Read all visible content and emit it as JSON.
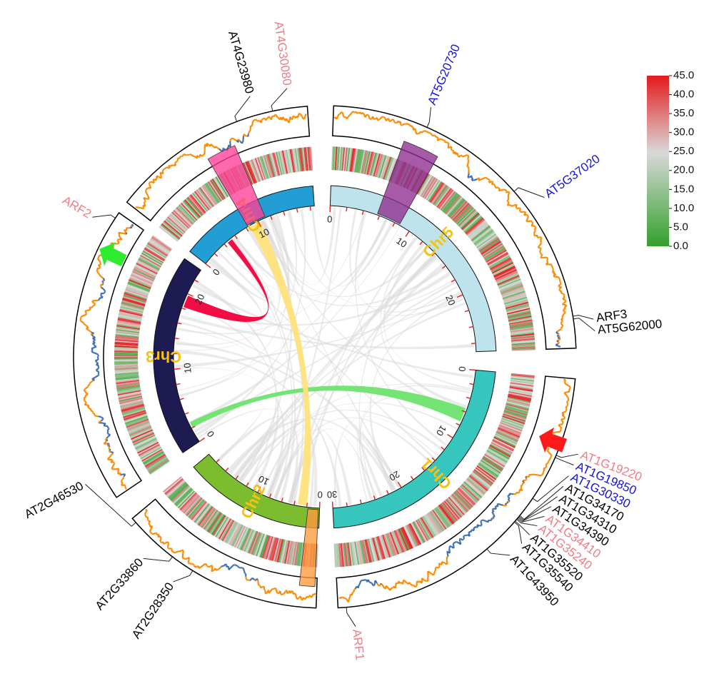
{
  "colors": {
    "chr1": "#36C6BE",
    "chr2": "#7CBD2F",
    "chr3": "#1E1B52",
    "chr4": "#239ED5",
    "chr5": "#BFE3EC",
    "chr_label": "#F5C211",
    "tick": "#e02020",
    "link_bg": "#d9d9d9",
    "link_red": "#F2003A",
    "link_green": "#6DE36D",
    "link_yellow": "#FFE27A",
    "hl_pink": "#FF3D95",
    "hl_purple": "#8E2B8E",
    "hl_orange": "#FF9A3C",
    "line_orange": "#FF8A00",
    "line_blue": "#3F6FB5",
    "text_black": "#000000",
    "text_pink": "#F07C86",
    "text_blue": "#1515D9"
  },
  "chromosomes": [
    {
      "name": "Chr1",
      "length": 30,
      "major_ticks": [
        0,
        10,
        20,
        30
      ]
    },
    {
      "name": "Chr2",
      "length": 19.7,
      "major_ticks": [
        0,
        10
      ]
    },
    {
      "name": "Chr3",
      "length": 23.5,
      "major_ticks": [
        0,
        10,
        20
      ]
    },
    {
      "name": "Chr4",
      "length": 18.6,
      "major_ticks": [
        0,
        10
      ]
    },
    {
      "name": "Chr5",
      "length": 27,
      "major_ticks": [
        0,
        10,
        20
      ]
    }
  ],
  "gene_labels": [
    {
      "text": "AT4G23980",
      "chr": "Chr4",
      "pos": 12.2,
      "color": "black"
    },
    {
      "text": "AT4G30080",
      "chr": "Chr4",
      "pos": 15.5,
      "color": "pink"
    },
    {
      "text": "AT5G20730",
      "chr": "Chr5",
      "pos": 6.9,
      "color": "blue"
    },
    {
      "text": "AT5G37020",
      "chr": "Chr5",
      "pos": 14.7,
      "color": "blue"
    },
    {
      "text": "ARF3",
      "chr": "Chr5",
      "pos": 24.7,
      "color": "black"
    },
    {
      "text": "AT5G62000",
      "chr": "Chr5",
      "pos": 24.9,
      "color": "black"
    },
    {
      "text": "ARF2",
      "chr": "Chr3",
      "pos": 23.0,
      "color": "pink"
    },
    {
      "text": "AT1G19220",
      "chr": "Chr1",
      "pos": 6.6,
      "color": "pink"
    },
    {
      "text": "AT1G19850",
      "chr": "Chr1",
      "pos": 6.8,
      "color": "blue"
    },
    {
      "text": "AT1G30330",
      "chr": "Chr1",
      "pos": 10.7,
      "color": "blue"
    },
    {
      "text": "AT1G34170",
      "chr": "Chr1",
      "pos": 12.5,
      "color": "black"
    },
    {
      "text": "AT1G34310",
      "chr": "Chr1",
      "pos": 12.6,
      "color": "black"
    },
    {
      "text": "AT1G34390",
      "chr": "Chr1",
      "pos": 12.7,
      "color": "black"
    },
    {
      "text": "AT1G34410",
      "chr": "Chr1",
      "pos": 12.8,
      "color": "pink"
    },
    {
      "text": "AT1G35240",
      "chr": "Chr1",
      "pos": 12.9,
      "color": "pink"
    },
    {
      "text": "AT1G35520",
      "chr": "Chr1",
      "pos": 13.1,
      "color": "black"
    },
    {
      "text": "AT1G35540",
      "chr": "Chr1",
      "pos": 13.2,
      "color": "black"
    },
    {
      "text": "AT1G43950",
      "chr": "Chr1",
      "pos": 16.4,
      "color": "black"
    },
    {
      "text": "ARF1",
      "chr": "Chr1",
      "pos": 29.3,
      "color": "pink"
    },
    {
      "text": "AT2G46530",
      "chr": "Chr2",
      "pos": 19.2,
      "color": "black"
    },
    {
      "text": "AT2G33860",
      "chr": "Chr2",
      "pos": 14.5,
      "color": "black"
    },
    {
      "text": "AT2G28350",
      "chr": "Chr2",
      "pos": 12.2,
      "color": "black"
    }
  ],
  "colorbar": {
    "tick_labels": [
      "45.0",
      "40.0",
      "35.0",
      "30.0",
      "25.0",
      "20.0",
      "15.0",
      "10.0",
      "5.0",
      "0.0"
    ],
    "min": 0.0,
    "max": 45.0
  },
  "links": [
    {
      "from": {
        "chr": "Chr4",
        "start": 4.5,
        "end": 5.3
      },
      "to": {
        "chr": "Chr3",
        "start": 18.2,
        "end": 19.8
      },
      "color": "red"
    },
    {
      "from": {
        "chr": "Chr1",
        "start": 5.5,
        "end": 7.5
      },
      "to": {
        "chr": "Chr3",
        "start": 2.0,
        "end": 2.8
      },
      "color": "green"
    },
    {
      "from": {
        "chr": "Chr4",
        "start": 8.5,
        "end": 10.3
      },
      "to": {
        "chr": "Chr2",
        "start": 2.0,
        "end": 3.5
      },
      "color": "yellow"
    }
  ],
  "highlights": [
    {
      "chr": "Chr4",
      "start": 8.3,
      "end": 11.2,
      "color": "pink"
    },
    {
      "chr": "Chr5",
      "start": 5.7,
      "end": 8.6,
      "color": "purple"
    },
    {
      "chr": "Chr2",
      "start": 0.2,
      "end": 1.8,
      "color": "orange"
    }
  ],
  "arrows": [
    {
      "chr": "Chr3",
      "pos": 20.3,
      "color": "#2EEB2E",
      "direction": "outward"
    },
    {
      "chr": "Chr1",
      "pos": 5.6,
      "color": "#FF1A1A",
      "direction": "inward"
    }
  ]
}
